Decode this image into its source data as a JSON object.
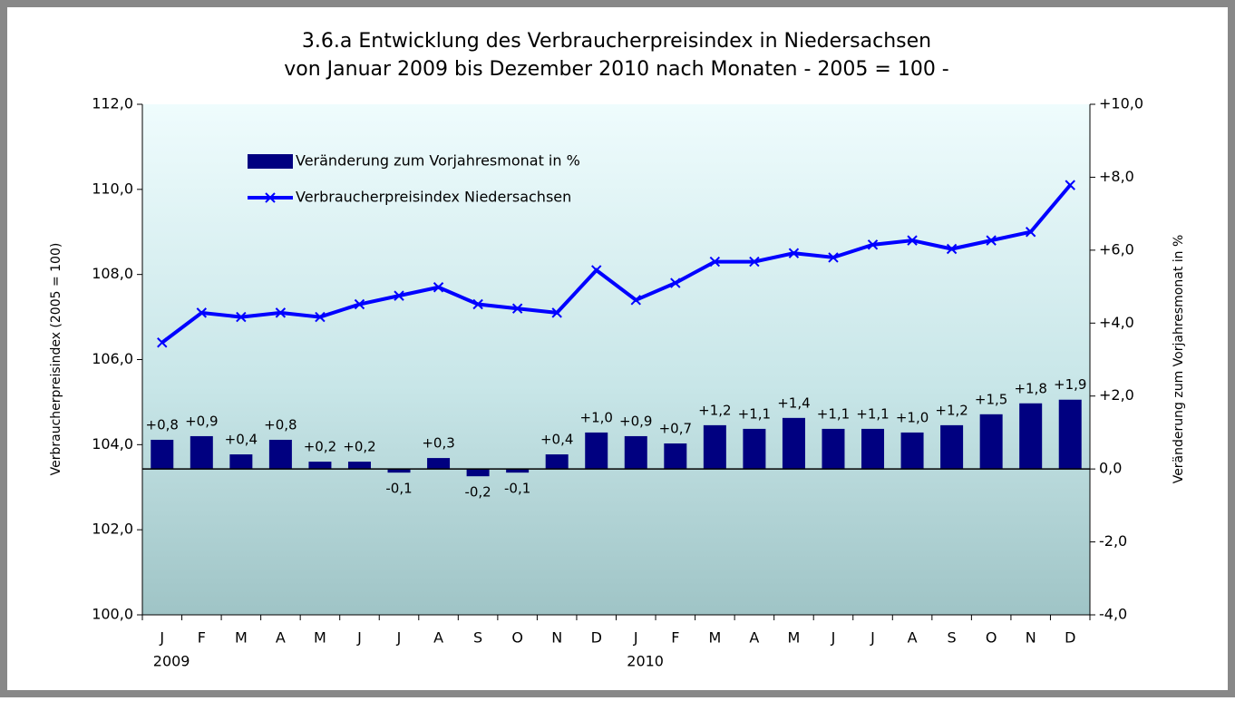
{
  "chart_data": {
    "type": "bar_line",
    "title": [
      "3.6.a Entwicklung des Verbraucherpreisindex in Niedersachsen",
      "von Januar 2009 bis Dezember 2010 nach Monaten  - 2005 = 100 -"
    ],
    "y_label": "Verbraucherpreisindex (2005 = 100)",
    "y2_label": "Veränderung zum Vorjahresmonat in %",
    "categories": [
      "J",
      "F",
      "M",
      "A",
      "M",
      "J",
      "J",
      "A",
      "S",
      "O",
      "N",
      "D",
      "J",
      "F",
      "M",
      "A",
      "M",
      "J",
      "J",
      "A",
      "S",
      "O",
      "N",
      "D"
    ],
    "year_labels": [
      "2009",
      null,
      null,
      null,
      null,
      null,
      null,
      null,
      null,
      null,
      null,
      null,
      "2010",
      null,
      null,
      null,
      null,
      null,
      null,
      null,
      null,
      null,
      null,
      null
    ],
    "ylim": [
      100,
      112
    ],
    "yticks": [
      {
        "value": 100,
        "label": "100,0"
      },
      {
        "value": 102,
        "label": "102,0"
      },
      {
        "value": 104,
        "label": "104,0"
      },
      {
        "value": 106,
        "label": "106,0"
      },
      {
        "value": 108,
        "label": "108,0"
      },
      {
        "value": 110,
        "label": "110,0"
      },
      {
        "value": 112,
        "label": "112,0"
      }
    ],
    "y2lim": [
      -4,
      10
    ],
    "y2ticks": [
      {
        "value": -4,
        "label": "-4,0"
      },
      {
        "value": -2,
        "label": "-2,0"
      },
      {
        "value": 0,
        "label": "0,0"
      },
      {
        "value": 2,
        "label": "+2,0"
      },
      {
        "value": 4,
        "label": "+4,0"
      },
      {
        "value": 6,
        "label": "+6,0"
      },
      {
        "value": 8,
        "label": "+8,0"
      },
      {
        "value": 10,
        "label": "+10,0"
      }
    ],
    "series": [
      {
        "name": "Veränderung zum Vorjahresmonat in %",
        "type": "bar",
        "axis": "y2",
        "color": "#000080",
        "values": [
          0.8,
          0.9,
          0.4,
          0.8,
          0.2,
          0.2,
          -0.1,
          0.3,
          -0.2,
          -0.1,
          0.4,
          1.0,
          0.9,
          0.7,
          1.2,
          1.1,
          1.4,
          1.1,
          1.1,
          1.0,
          1.2,
          1.5,
          1.8,
          1.9
        ],
        "value_labels": [
          "+0,8",
          "+0,9",
          "+0,4",
          "+0,8",
          "+0,2",
          "+0,2",
          "-0,1",
          "+0,3",
          "-0,2",
          "-0,1",
          "+0,4",
          "+1,0",
          "+0,9",
          "+0,7",
          "+1,2",
          "+1,1",
          "+1,4",
          "+1,1",
          "+1,1",
          "+1,0",
          "+1,2",
          "+1,5",
          "+1,8",
          "+1,9"
        ]
      },
      {
        "name": "Verbraucherpreisindex Niedersachsen",
        "type": "line",
        "axis": "y",
        "color": "#0000ff",
        "values": [
          106.4,
          107.1,
          107.0,
          107.1,
          107.0,
          107.3,
          107.5,
          107.7,
          107.3,
          107.2,
          107.1,
          108.1,
          107.4,
          107.8,
          108.3,
          108.3,
          108.5,
          108.4,
          108.7,
          108.8,
          108.6,
          108.8,
          109.0,
          110.1
        ]
      }
    ]
  }
}
